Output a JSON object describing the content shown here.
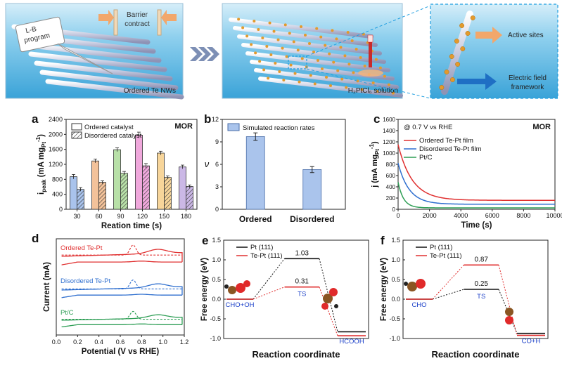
{
  "schematic": {
    "panel1": {
      "program_label": "L-B\nprogram",
      "barrier_label": "Barrier\ncontract",
      "caption": "Ordered Te NWs"
    },
    "panel2": {
      "caption": "H₂PtCl₆ solution"
    },
    "panel3": {
      "active_label": "Active sites",
      "field_label": "Electric field\nframework"
    }
  },
  "colors": {
    "ordered_pt": "#e03030",
    "disordered_pt": "#2f6fcf",
    "ptc": "#2e9e55",
    "simulated_bar": "#aac4ec",
    "water": "#7fc8ea",
    "nanowire": "#c9cde0",
    "particle": "#e39a2c"
  },
  "chart_data": [
    {
      "panel_label": "a",
      "type": "bar",
      "annotation": "MOR",
      "xlabel": "Reation time (s)",
      "ylabel": "i_peak (mA mg_Pt^-1)",
      "ylim": [
        0,
        2400
      ],
      "yticks": [
        "0",
        "400",
        "800",
        "1200",
        "1600",
        "2000",
        "2400"
      ],
      "categories": [
        "30",
        "60",
        "90",
        "120",
        "150",
        "180"
      ],
      "bar_colors": [
        "#a9c3ec",
        "#f3c29a",
        "#b8e0a8",
        "#f0a8dc",
        "#f7d59a",
        "#cbb8e6"
      ],
      "series": [
        {
          "name": "Ordered catalyst",
          "values": [
            870,
            1290,
            1590,
            1980,
            1500,
            1130
          ],
          "errors": [
            60,
            50,
            50,
            80,
            50,
            50
          ]
        },
        {
          "name": "Disordered catalyst",
          "values": [
            530,
            720,
            960,
            1160,
            850,
            610
          ],
          "errors": [
            50,
            40,
            50,
            60,
            40,
            40
          ]
        }
      ]
    },
    {
      "panel_label": "b",
      "type": "bar",
      "ylabel": "ν",
      "ylim": [
        0,
        12
      ],
      "yticks": [
        "0",
        "3",
        "6",
        "9",
        "12"
      ],
      "categories": [
        "Ordered",
        "Disordered"
      ],
      "series": [
        {
          "name": "Simulated reaction rates",
          "values": [
            9.7,
            5.3
          ],
          "errors": [
            0.5,
            0.4
          ]
        }
      ]
    },
    {
      "panel_label": "c",
      "type": "line",
      "annotation": "MOR",
      "note": "@ 0.7 V vs RHE",
      "xlabel": "Time (s)",
      "ylabel": "j (mA mg_Pt^-1)",
      "xlim": [
        0,
        10000
      ],
      "ylim": [
        0,
        1600
      ],
      "xticks": [
        "0",
        "2000",
        "4000",
        "6000",
        "8000",
        "10000"
      ],
      "yticks": [
        "0",
        "200",
        "400",
        "600",
        "800",
        "1000",
        "1200",
        "1400",
        "1600"
      ],
      "series": [
        {
          "name": "Ordered Te-Pt film",
          "j0": 1150,
          "jinf": 160,
          "tau": 900
        },
        {
          "name": "Disordered Te-Pt film",
          "j0": 820,
          "jinf": 90,
          "tau": 700
        },
        {
          "name": "Pt/C",
          "j0": 480,
          "jinf": 25,
          "tau": 350
        }
      ]
    },
    {
      "panel_label": "d",
      "type": "line",
      "xlabel": "Potential (V vs RHE)",
      "ylabel": "Current (mA)",
      "xlim": [
        0,
        1.2
      ],
      "xticks": [
        "0.0",
        "0.2",
        "0.4",
        "0.6",
        "0.8",
        "1.0",
        "1.2"
      ],
      "series": [
        {
          "name": "Ordered Te-Pt"
        },
        {
          "name": "Disordered Te-Pt"
        },
        {
          "name": "Pt/C"
        }
      ]
    },
    {
      "panel_label": "e",
      "type": "line",
      "xlabel": "Reaction coordinate",
      "ylabel": "Free energy (eV)",
      "ylim": [
        -1.0,
        1.5
      ],
      "yticks": [
        "-1.0",
        "-0.5",
        "0.0",
        "0.5",
        "1.0",
        "1.5"
      ],
      "states": [
        "CHO+OH",
        "TS",
        "HCOOH"
      ],
      "series": [
        {
          "name": "Pt (111)",
          "energies": [
            0,
            1.03,
            -0.83
          ],
          "ts_label": "1.03"
        },
        {
          "name": "Te-Pt (111)",
          "energies": [
            0,
            0.31,
            -0.93
          ],
          "ts_label": "0.31"
        }
      ]
    },
    {
      "panel_label": "f",
      "type": "line",
      "xlabel": "Reaction coordinate",
      "ylabel": "Free energy (eV)",
      "ylim": [
        -1.0,
        1.5
      ],
      "yticks": [
        "-1.0",
        "-0.5",
        "0.0",
        "0.5",
        "1.0",
        "1.5"
      ],
      "states": [
        "CHO",
        "TS",
        "CO+H"
      ],
      "series": [
        {
          "name": "Pt (111)",
          "energies": [
            0,
            0.25,
            -0.87
          ],
          "ts_label": "0.25"
        },
        {
          "name": "Te-Pt (111)",
          "energies": [
            0,
            0.87,
            -0.92
          ],
          "ts_label": "0.87"
        }
      ]
    }
  ]
}
